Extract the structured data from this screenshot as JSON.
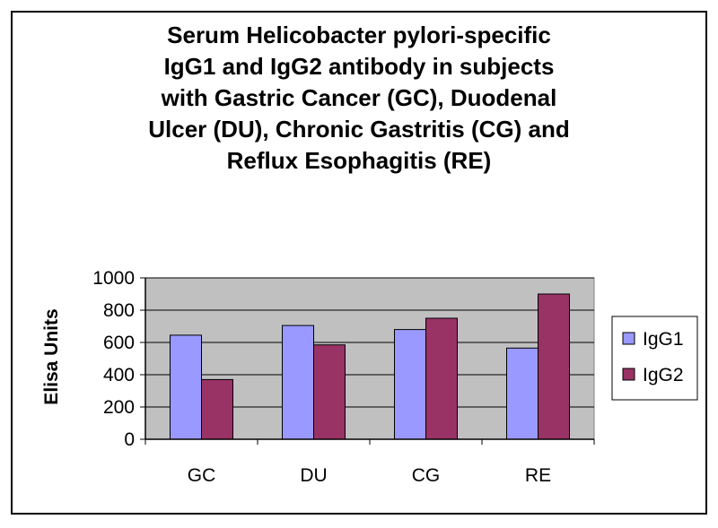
{
  "chart_data": {
    "type": "bar",
    "title_lines": [
      "Serum Helicobacter pylori-specific",
      "IgG1 and IgG2 antibody in subjects",
      "with Gastric Cancer (GC), Duodenal",
      "Ulcer (DU), Chronic Gastritis (CG) and",
      "Reflux Esophagitis (RE)"
    ],
    "xlabel": "",
    "ylabel": "Elisa Units",
    "categories": [
      "GC",
      "DU",
      "CG",
      "RE"
    ],
    "series": [
      {
        "name": "IgG1",
        "color": "#9999ff",
        "values": [
          645,
          705,
          680,
          565
        ]
      },
      {
        "name": "IgG2",
        "color": "#993366",
        "values": [
          370,
          585,
          750,
          900
        ]
      }
    ],
    "ylim": [
      0,
      1000
    ],
    "yticks": [
      0,
      200,
      400,
      600,
      800,
      1000
    ],
    "grid": true,
    "plot_background": "#c0c0c0",
    "legend_position": "right"
  }
}
